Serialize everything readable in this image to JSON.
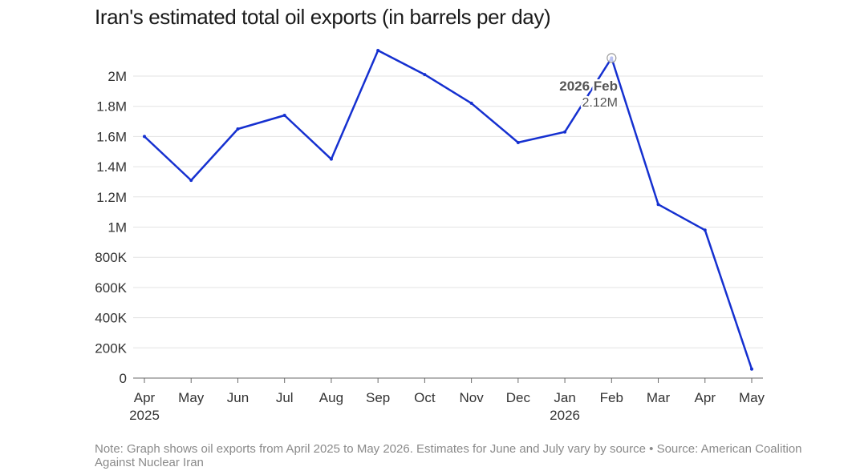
{
  "title": "Iran's estimated total oil exports (in barrels per day)",
  "note": "Note: Graph shows oil exports from April 2025 to May 2026. Estimates for June and July vary by source • Source: American Coalition Against Nuclear Iran",
  "colors": {
    "line": "#1530d0",
    "grid": "#e3e3e3",
    "axis": "#6a6a6a",
    "text": "#333333",
    "note": "#8a8a8a"
  },
  "chart_data": {
    "type": "line",
    "title": "Iran's estimated total oil exports (in barrels per day)",
    "x_labels": [
      {
        "month": "Apr",
        "year": "2025"
      },
      {
        "month": "May",
        "year": ""
      },
      {
        "month": "Jun",
        "year": ""
      },
      {
        "month": "Jul",
        "year": ""
      },
      {
        "month": "Aug",
        "year": ""
      },
      {
        "month": "Sep",
        "year": ""
      },
      {
        "month": "Oct",
        "year": ""
      },
      {
        "month": "Nov",
        "year": ""
      },
      {
        "month": "Dec",
        "year": ""
      },
      {
        "month": "Jan",
        "year": "2026"
      },
      {
        "month": "Feb",
        "year": ""
      },
      {
        "month": "Mar",
        "year": ""
      },
      {
        "month": "Apr",
        "year": ""
      },
      {
        "month": "May",
        "year": ""
      }
    ],
    "series": [
      {
        "values": [
          1600000,
          1310000,
          1650000,
          1740000,
          1450000,
          2170000,
          2010000,
          1820000,
          1560000,
          1630000,
          2120000,
          1150000,
          980000,
          60000
        ]
      }
    ],
    "y_ticks": [
      0,
      200000,
      400000,
      600000,
      800000,
      1000000,
      1200000,
      1400000,
      1600000,
      1800000,
      2000000
    ],
    "y_tick_labels": [
      "0",
      "200K",
      "400K",
      "600K",
      "800K",
      "1M",
      "1.2M",
      "1.4M",
      "1.6M",
      "1.8M",
      "2M"
    ],
    "ylim": [
      0,
      2250000
    ],
    "grid": true,
    "legend": "none",
    "annotation": {
      "index": 10,
      "title": "2026 Feb",
      "value_label": "2.12M"
    }
  }
}
